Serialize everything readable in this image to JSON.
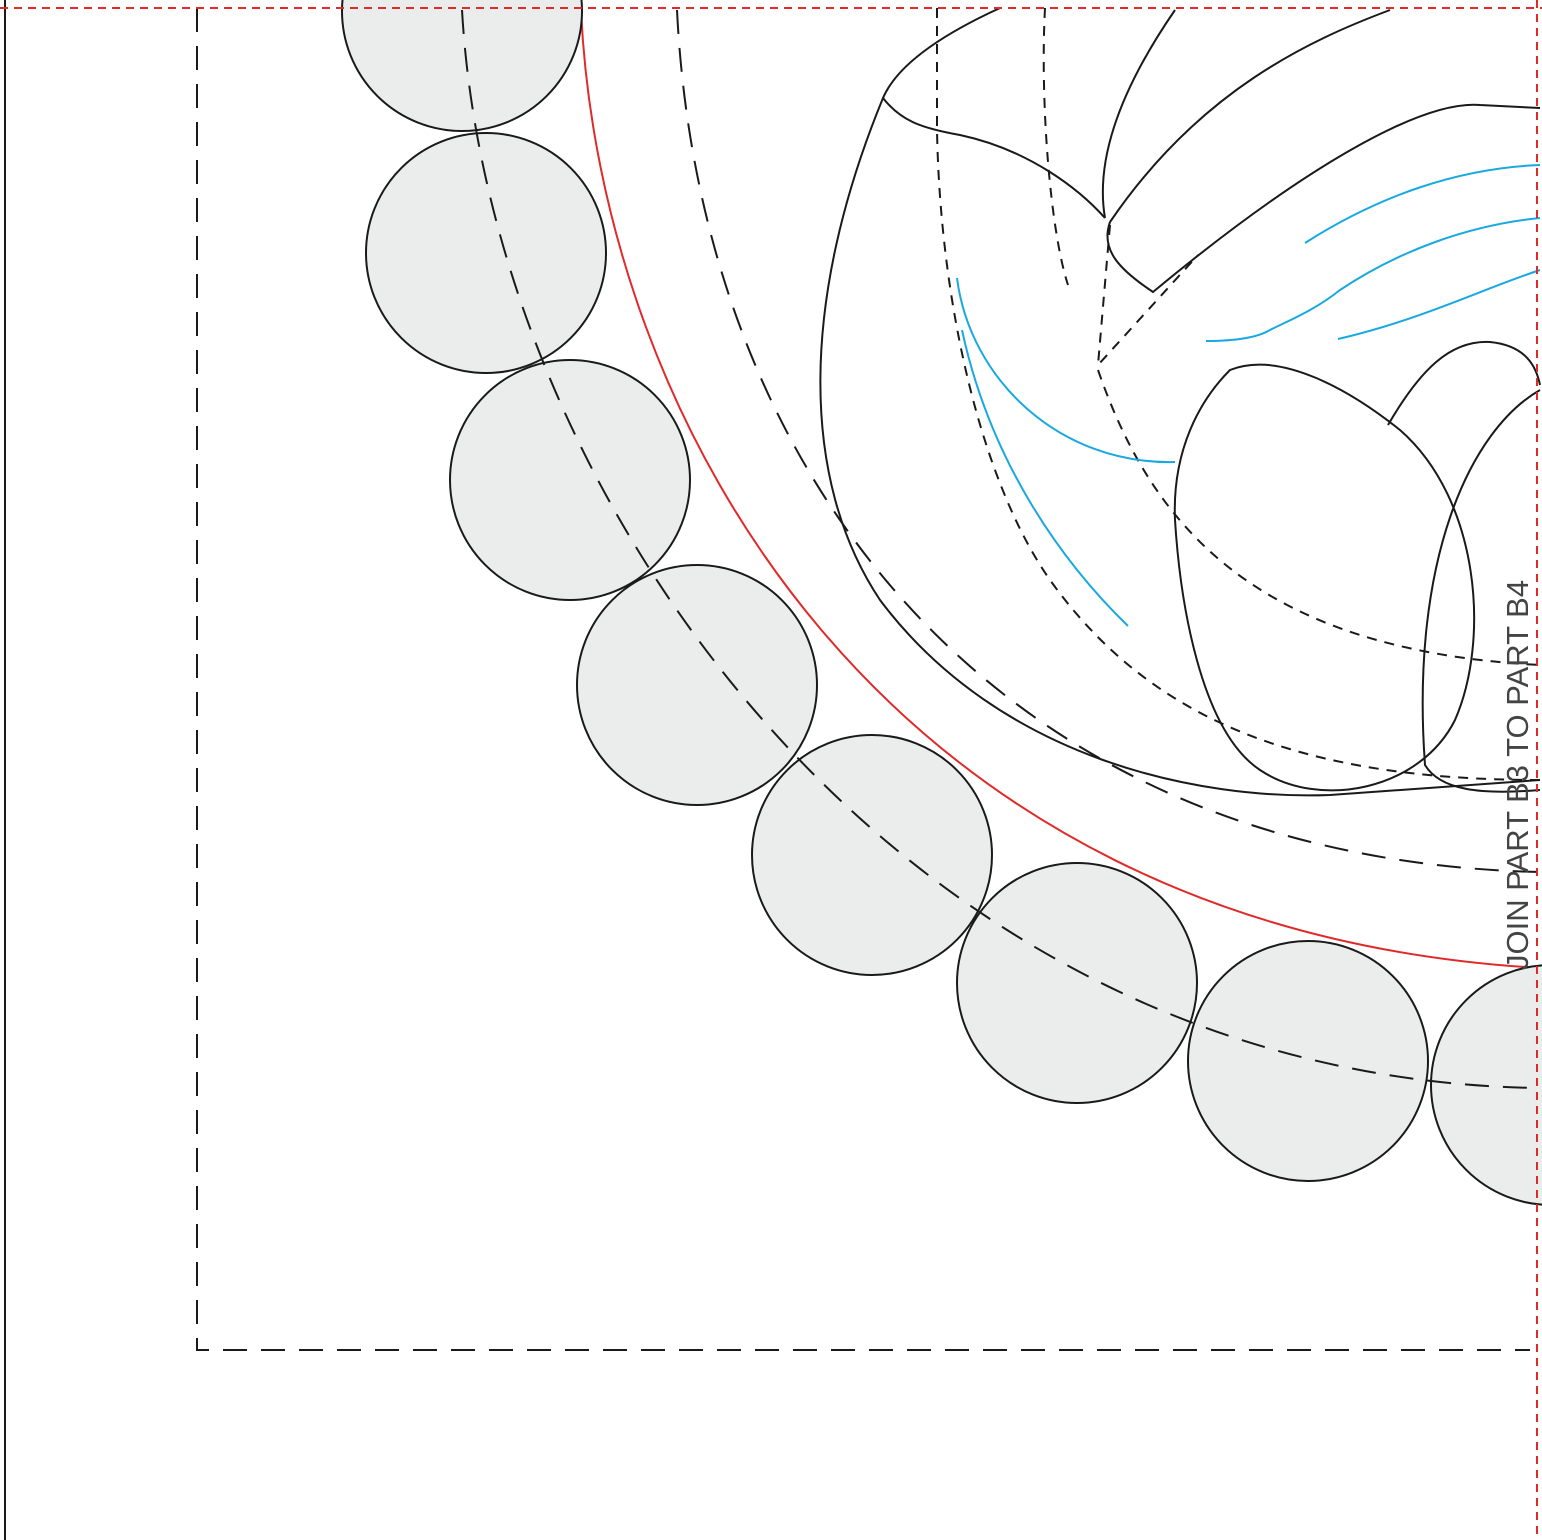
{
  "label": "JOIN PART B3 TO PART B4"
}
